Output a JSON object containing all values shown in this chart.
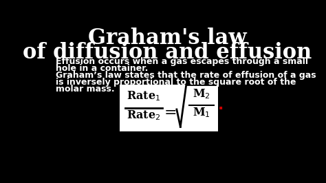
{
  "bg_color": "#000000",
  "title_line1": "Graham's law",
  "title_line2": "of diffusion and effusion",
  "title_color": "#ffffff",
  "title_fontsize": 22,
  "title_fontweight": "bold",
  "body_text_line1": "Effusion occurs when a gas escapes through a small",
  "body_text_line2": "hole in a container.",
  "body_text_line3": "Graham’s law states that the rate of effusion of a gas",
  "body_text_line4": "is inversely proportional to the square root of the",
  "body_text_line5": "molar mass.",
  "body_color": "#ffffff",
  "body_fontsize": 9,
  "formula_box_color": "#ffffff",
  "formula_text_color": "#000000",
  "dot_color": "#cc0000"
}
